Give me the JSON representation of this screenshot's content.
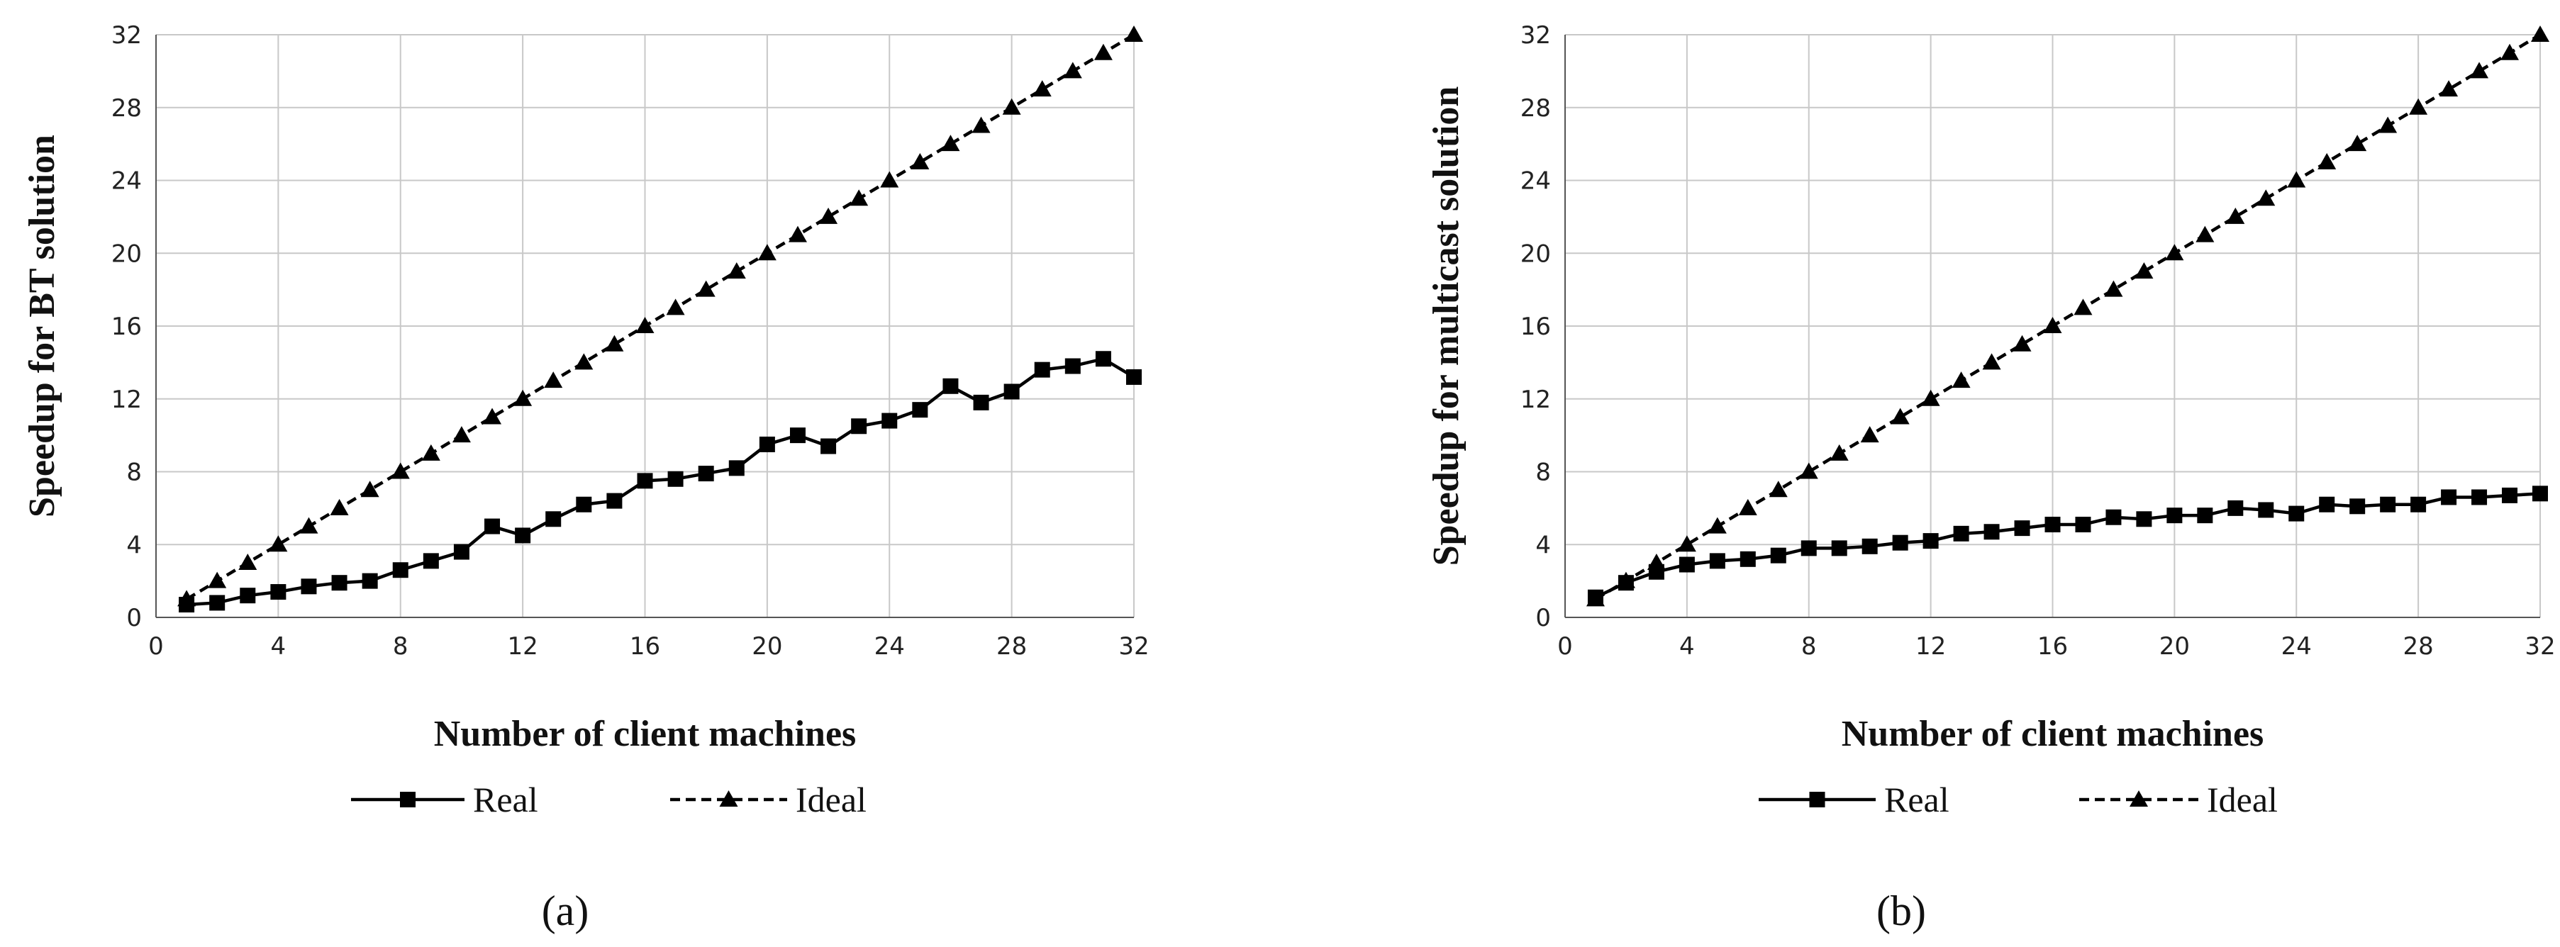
{
  "chart_data": [
    {
      "type": "line",
      "label": "(a)",
      "xlabel": "Number of client machines",
      "ylabel": "Speedup for BT solution",
      "x": [
        1,
        2,
        3,
        4,
        5,
        6,
        7,
        8,
        9,
        10,
        11,
        12,
        13,
        14,
        15,
        16,
        17,
        18,
        19,
        20,
        21,
        22,
        23,
        24,
        25,
        26,
        27,
        28,
        29,
        30,
        31,
        32
      ],
      "series": [
        {
          "name": "Real",
          "color": "#000000",
          "marker": "square",
          "dashed": false,
          "values": [
            0.7,
            0.8,
            1.2,
            1.4,
            1.7,
            1.9,
            2.0,
            2.6,
            3.1,
            3.6,
            5.0,
            4.5,
            5.4,
            6.2,
            6.4,
            7.5,
            7.6,
            7.9,
            8.2,
            9.5,
            10.0,
            9.4,
            10.5,
            10.8,
            11.4,
            12.7,
            11.8,
            12.4,
            13.6,
            13.8,
            14.2,
            13.2
          ]
        },
        {
          "name": "Ideal",
          "color": "#000000",
          "marker": "triangle",
          "dashed": true,
          "values": [
            1,
            2,
            3,
            4,
            5,
            6,
            7,
            8,
            9,
            10,
            11,
            12,
            13,
            14,
            15,
            16,
            17,
            18,
            19,
            20,
            21,
            22,
            23,
            24,
            25,
            26,
            27,
            28,
            29,
            30,
            31,
            32
          ]
        }
      ],
      "xlim": [
        0,
        32
      ],
      "ylim": [
        0,
        32
      ],
      "xticks": [
        0,
        4,
        8,
        12,
        16,
        20,
        24,
        28,
        32
      ],
      "yticks": [
        0,
        4,
        8,
        12,
        16,
        20,
        24,
        28,
        32
      ],
      "grid": true
    },
    {
      "type": "line",
      "label": "(b)",
      "xlabel": "Number of client machines",
      "ylabel": "Speedup for multicast solution",
      "x": [
        1,
        2,
        3,
        4,
        5,
        6,
        7,
        8,
        9,
        10,
        11,
        12,
        13,
        14,
        15,
        16,
        17,
        18,
        19,
        20,
        21,
        22,
        23,
        24,
        25,
        26,
        27,
        28,
        29,
        30,
        31,
        32
      ],
      "series": [
        {
          "name": "Real",
          "color": "#000000",
          "marker": "square",
          "dashed": false,
          "values": [
            1.1,
            1.9,
            2.5,
            2.9,
            3.1,
            3.2,
            3.4,
            3.8,
            3.8,
            3.9,
            4.1,
            4.2,
            4.6,
            4.7,
            4.9,
            5.1,
            5.1,
            5.5,
            5.4,
            5.6,
            5.6,
            6.0,
            5.9,
            5.7,
            6.2,
            6.1,
            6.2,
            6.2,
            6.6,
            6.6,
            6.7,
            6.8
          ]
        },
        {
          "name": "Ideal",
          "color": "#000000",
          "marker": "triangle",
          "dashed": true,
          "values": [
            1,
            2,
            3,
            4,
            5,
            6,
            7,
            8,
            9,
            10,
            11,
            12,
            13,
            14,
            15,
            16,
            17,
            18,
            19,
            20,
            21,
            22,
            23,
            24,
            25,
            26,
            27,
            28,
            29,
            30,
            31,
            32
          ]
        }
      ],
      "xlim": [
        0,
        32
      ],
      "ylim": [
        0,
        32
      ],
      "xticks": [
        0,
        4,
        8,
        12,
        16,
        20,
        24,
        28,
        32
      ],
      "yticks": [
        0,
        4,
        8,
        12,
        16,
        20,
        24,
        28,
        32
      ],
      "grid": true
    }
  ]
}
